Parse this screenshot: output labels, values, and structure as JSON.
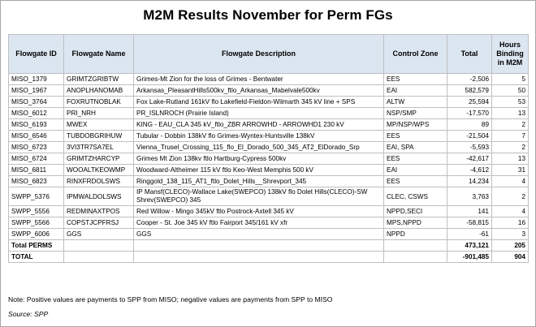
{
  "title": "M2M Results November for Perm FGs",
  "headers": {
    "flowgate_id": "Flowgate ID",
    "flowgate_name": "Flowgate Name",
    "description": "Flowgate Description",
    "control_zone": "Control Zone",
    "total": "Total",
    "hours": "Hours Binding in M2M"
  },
  "rows": [
    {
      "id": "MISO_1379",
      "name": "GRIMTZGRIBTW",
      "desc": "Grimes-Mt Zion for the loss of Grimes - Bentwater",
      "zone": "EES",
      "total": "-2,506",
      "hours": "5"
    },
    {
      "id": "MISO_1967",
      "name": "ANOPLHANOMAB",
      "desc": "Arkansas_PleasantHills500kv_ftlo_Arkansas_Mabelvale500kv",
      "zone": "EAI",
      "total": "582,579",
      "hours": "50"
    },
    {
      "id": "MISO_3764",
      "name": "FOXRUTNOBLAK",
      "desc": "Fox Lake-Rutland 161kV flo Lakefield-Fieldon-Wilmarth 345 kV line + SPS",
      "zone": "ALTW",
      "total": "25,594",
      "hours": "53"
    },
    {
      "id": "MISO_6012",
      "name": "PRI_NRH",
      "desc": "PR_ISLNROCH (Prairie Island)",
      "zone": "NSP/SMP",
      "total": "-17,570",
      "hours": "13"
    },
    {
      "id": "MISO_6193",
      "name": "MWEX",
      "desc": "KING - EAU_CLA 345 kV_ftlo_ZBR ARROWHD - ARROWHD1 230 kV",
      "zone": "MP/NSP/WPS",
      "total": "89",
      "hours": "2"
    },
    {
      "id": "MISO_6546",
      "name": "TUBDOBGRIHUW",
      "desc": "Tubular - Dobbin 138kV flo Grimes-Wyntex-Huntsville 138kV",
      "zone": "EES",
      "total": "-21,504",
      "hours": "7"
    },
    {
      "id": "MISO_6723",
      "name": "3VI3TR7SA7EL",
      "desc": "Vienna_Trusel_Crossing_115_flo_El_Dorado_500_345_AT2_ElDorado_Srp",
      "zone": "EAI, SPA",
      "total": "-5,593",
      "hours": "2"
    },
    {
      "id": "MISO_6724",
      "name": "GRIMTZHARCYP",
      "desc": "Grimes Mt Zion 138kv ftlo Hartburg-Cypress 500kv",
      "zone": "EES",
      "total": "-42,617",
      "hours": "13"
    },
    {
      "id": "MISO_6811",
      "name": "WOOALTKEOWMP",
      "desc": "Woodward-Altheimer 115 kV ftlo Keo-West Memphis 500 kV",
      "zone": "EAI",
      "total": "-4,612",
      "hours": "31"
    },
    {
      "id": "MISO_6823",
      "name": "RINXFRDOLSWS",
      "desc": "Ringgold_138_115_AT1_ftlo_Dolet_Hills__Shrevport_345",
      "zone": "EES",
      "total": "14,234",
      "hours": "4"
    },
    {
      "id": "SWPP_5376",
      "name": "IPMWALDOLSWS",
      "desc": "IP Mansf(CLECO)-Wallace Lake(SWEPCO) 138kV flo Dolet Hills(CLECO)-SW Shrev(SWEPCO) 345",
      "zone": "CLEC, CSWS",
      "total": "3,763",
      "hours": "2"
    },
    {
      "id": "SWPP_5556",
      "name": "REDMINAXTPOS",
      "desc": "Red Willow - Mingo 345kV ftlo Postrock-Axtell 345 kV",
      "zone": "NPPD,SECI",
      "total": "141",
      "hours": "4"
    },
    {
      "id": "SWPP_5566",
      "name": "COPSTJCPFRSJ",
      "desc": "Cooper - St. Joe 345 kV ftlo Fairport 345/161 kV xfr",
      "zone": "MPS,NPPD",
      "total": "-58,815",
      "hours": "16"
    },
    {
      "id": "SWPP_6006",
      "name": "GGS",
      "desc": "GGS",
      "zone": "NPPD",
      "total": "-61",
      "hours": "3"
    }
  ],
  "totals": [
    {
      "label": "Total PERMS",
      "total": "473,121",
      "hours": "205"
    },
    {
      "label": "TOTAL",
      "total": "-901,485",
      "hours": "904"
    }
  ],
  "note": "Note:  Positive values are payments to SPP from MISO; negative values are payments from SPP to MISO",
  "source": "Source: SPP"
}
